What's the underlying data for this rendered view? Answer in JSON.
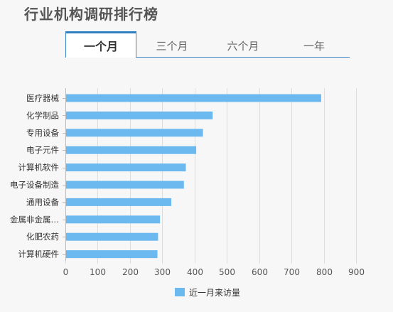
{
  "title": "行业机构调研排行榜",
  "tabs": [
    {
      "label": "一个月",
      "active": true
    },
    {
      "label": "三个月",
      "active": false
    },
    {
      "label": "六个月",
      "active": false
    },
    {
      "label": "一年",
      "active": false
    }
  ],
  "colors": {
    "bar": "#6cb9ef",
    "tab_accent": "#2f7fc1",
    "grid": "#dddddd"
  },
  "chart_data": {
    "type": "bar",
    "orientation": "horizontal",
    "categories": [
      "医疗器械",
      "化学制品",
      "专用设备",
      "电子元件",
      "计算机软件",
      "电子设备制造",
      "通用设备",
      "金属非金属…",
      "化肥农药",
      "计算机硬件"
    ],
    "series": [
      {
        "name": "近一月来访量",
        "values": [
          792,
          456,
          426,
          405,
          373,
          367,
          328,
          293,
          287,
          285
        ]
      }
    ],
    "xlim": [
      0,
      900
    ],
    "xticks": [
      0,
      100,
      200,
      300,
      400,
      500,
      600,
      700,
      800,
      900
    ],
    "grid": true,
    "legend": "bottom"
  }
}
